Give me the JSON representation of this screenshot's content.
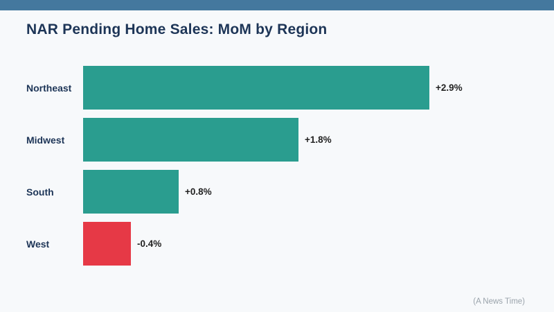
{
  "header": {
    "title": "NAR Pending Home Sales: MoM by Region"
  },
  "chart_data": {
    "type": "bar",
    "orientation": "horizontal",
    "title": "NAR Pending Home Sales: MoM by Region",
    "categories": [
      "Northeast",
      "Midwest",
      "South",
      "West"
    ],
    "values": [
      2.9,
      1.8,
      0.8,
      -0.4
    ],
    "value_labels": [
      "+2.9%",
      "+1.8%",
      "+0.8%",
      "-0.4%"
    ],
    "xlabel": "",
    "ylabel": "",
    "xlim": [
      0,
      3.5
    ],
    "grid": false,
    "legend": "none",
    "positive_color": "#2A9D8F",
    "negative_color": "#E63946"
  },
  "footer": {
    "credit": "(A News Time)"
  },
  "colors": {
    "background": "#F7F9FB",
    "top_bar": "#44789E",
    "title_text": "#1D3557",
    "label_text": "#1D3557",
    "value_text": "#222222",
    "footer_text": "#9AA3AB"
  }
}
